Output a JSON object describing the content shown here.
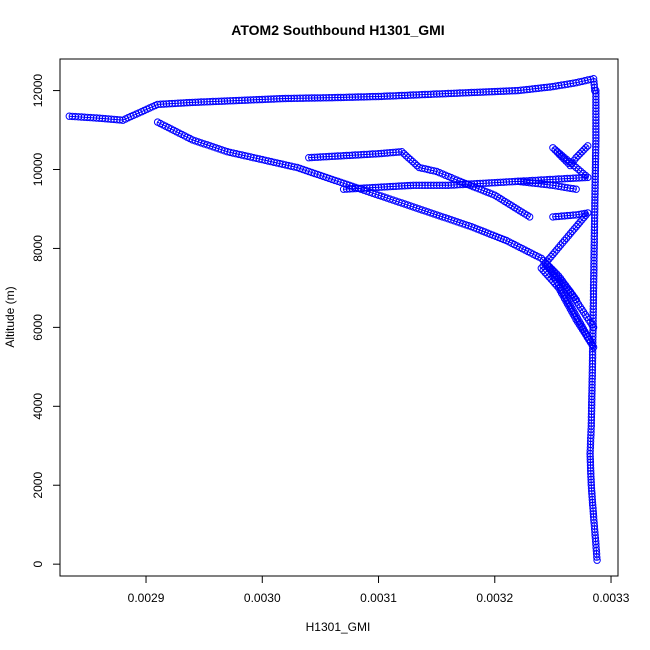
{
  "chart_data": {
    "type": "scatter",
    "title": "ATOM2 Southbound H1301_GMI",
    "xlabel": "H1301_GMI",
    "ylabel": "Altitude (m)",
    "xlim": [
      0.002826,
      0.003306
    ],
    "ylim": [
      -300,
      12800
    ],
    "xticks": [
      0.0029,
      0.003,
      0.0031,
      0.0032,
      0.0033
    ],
    "xtick_labels": [
      "0.0029",
      "0.0030",
      "0.0031",
      "0.0032",
      "0.0033"
    ],
    "yticks": [
      0,
      2000,
      4000,
      6000,
      8000,
      10000,
      12000
    ],
    "ytick_labels": [
      "0",
      "2000",
      "4000",
      "6000",
      "8000",
      "10000",
      "12000"
    ],
    "marker": "open-circle",
    "color": "#0000FF",
    "grid": false,
    "series": [
      {
        "x": [
          0.002834,
          0.00286,
          0.00288,
          0.00291,
          0.00294,
          0.00298,
          0.00302,
          0.00306,
          0.0031,
          0.00314,
          0.00318,
          0.00322,
          0.00325,
          0.00327,
          0.003285,
          0.003286
        ],
        "y": [
          11350,
          11300,
          11250,
          11650,
          11700,
          11750,
          11800,
          11820,
          11850,
          11900,
          11950,
          12000,
          12100,
          12200,
          12300,
          12000
        ]
      },
      {
        "x": [
          0.003287,
          0.003287,
          0.003286,
          0.003285,
          0.003284,
          0.003283,
          0.003282,
          0.003283,
          0.003285,
          0.003287,
          0.003288
        ],
        "y": [
          12000,
          10800,
          9000,
          7000,
          5000,
          3500,
          2800,
          2000,
          1200,
          500,
          100
        ]
      },
      {
        "x": [
          0.00291,
          0.00294,
          0.00297,
          0.003,
          0.00303,
          0.00306,
          0.00309,
          0.00312,
          0.00315,
          0.00318,
          0.00321,
          0.00324,
          0.003255,
          0.00327
        ],
        "y": [
          11200,
          10750,
          10450,
          10250,
          10050,
          9750,
          9450,
          9150,
          8850,
          8550,
          8200,
          7750,
          7300,
          6700
        ]
      },
      {
        "x": [
          0.00304,
          0.00307,
          0.0031,
          0.00312,
          0.003135,
          0.00315,
          0.00317,
          0.0032,
          0.00323
        ],
        "y": [
          10300,
          10350,
          10400,
          10450,
          10050,
          9950,
          9700,
          9350,
          8800
        ]
      },
      {
        "x": [
          0.00307,
          0.0031,
          0.00313,
          0.00316,
          0.00319,
          0.00322,
          0.00325,
          0.00327
        ],
        "y": [
          9500,
          9550,
          9600,
          9600,
          9650,
          9700,
          9600,
          9500
        ]
      },
      {
        "x": [
          0.00322,
          0.00325,
          0.00328,
          0.00325,
          0.003265,
          0.00327,
          0.003275,
          0.00328
        ],
        "y": [
          9700,
          9750,
          9800,
          10550,
          10100,
          10300,
          10450,
          10600
        ]
      },
      {
        "x": [
          0.00325,
          0.00327,
          0.00328,
          0.00324,
          0.003255,
          0.00327,
          0.003285,
          0.003245,
          0.003265,
          0.003285
        ],
        "y": [
          8800,
          8850,
          8900,
          7500,
          7000,
          6200,
          5500,
          7600,
          6900,
          6000
        ]
      }
    ]
  }
}
